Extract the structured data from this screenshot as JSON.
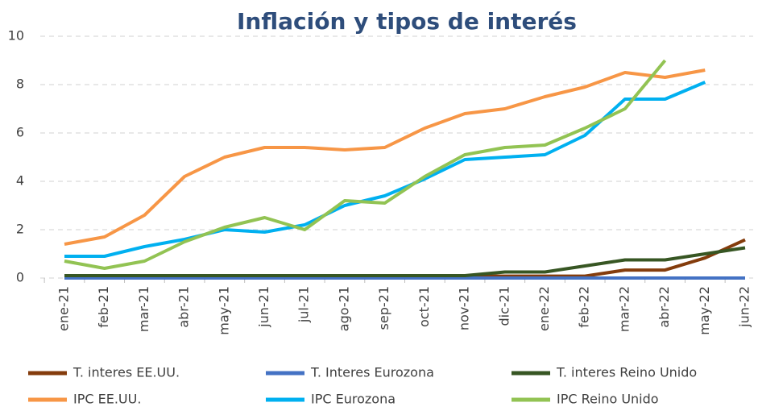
{
  "chart_data": {
    "type": "line",
    "title": "Inflación y tipos de interés",
    "categories": [
      "ene-21",
      "feb-21",
      "mar-21",
      "abr-21",
      "may-21",
      "jun-21",
      "jul-21",
      "ago-21",
      "sep-21",
      "oct-21",
      "nov-21",
      "dic-21",
      "ene-22",
      "feb-22",
      "mar-22",
      "abr-22",
      "may-22",
      "jun-22"
    ],
    "series": [
      {
        "name": "T. interes EE.UU.",
        "color": "#843c0c",
        "values": [
          0.08,
          0.08,
          0.08,
          0.08,
          0.08,
          0.08,
          0.08,
          0.08,
          0.08,
          0.08,
          0.08,
          0.08,
          0.08,
          0.08,
          0.33,
          0.33,
          0.83,
          1.58
        ]
      },
      {
        "name": "T. Interes Eurozona",
        "color": "#4472c4",
        "values": [
          0,
          0,
          0,
          0,
          0,
          0,
          0,
          0,
          0,
          0,
          0,
          0,
          0,
          0,
          0,
          0,
          0,
          0
        ]
      },
      {
        "name": "T. interes Reino Unido",
        "color": "#375623",
        "values": [
          0.1,
          0.1,
          0.1,
          0.1,
          0.1,
          0.1,
          0.1,
          0.1,
          0.1,
          0.1,
          0.1,
          0.25,
          0.25,
          0.5,
          0.75,
          0.75,
          1,
          1.25
        ]
      },
      {
        "name": "IPC EE.UU.",
        "color": "#f79646",
        "values": [
          1.4,
          1.7,
          2.6,
          4.2,
          5.0,
          5.4,
          5.4,
          5.3,
          5.4,
          6.2,
          6.8,
          7.0,
          7.5,
          7.9,
          8.5,
          8.3,
          8.6,
          null
        ]
      },
      {
        "name": "IPC Eurozona",
        "color": "#00b0f0",
        "values": [
          0.9,
          0.9,
          1.3,
          1.6,
          2.0,
          1.9,
          2.2,
          3.0,
          3.4,
          4.1,
          4.9,
          5.0,
          5.1,
          5.9,
          7.4,
          7.4,
          8.1,
          null
        ]
      },
      {
        "name": "IPC Reino Unido",
        "color": "#92c353",
        "values": [
          0.7,
          0.4,
          0.7,
          1.5,
          2.1,
          2.5,
          2.0,
          3.2,
          3.1,
          4.2,
          5.1,
          5.4,
          5.5,
          6.2,
          7.0,
          9.0,
          null,
          null
        ]
      }
    ],
    "ylim": [
      0,
      10
    ],
    "yticks": [
      0,
      2,
      4,
      6,
      8,
      10
    ],
    "grid": true
  }
}
